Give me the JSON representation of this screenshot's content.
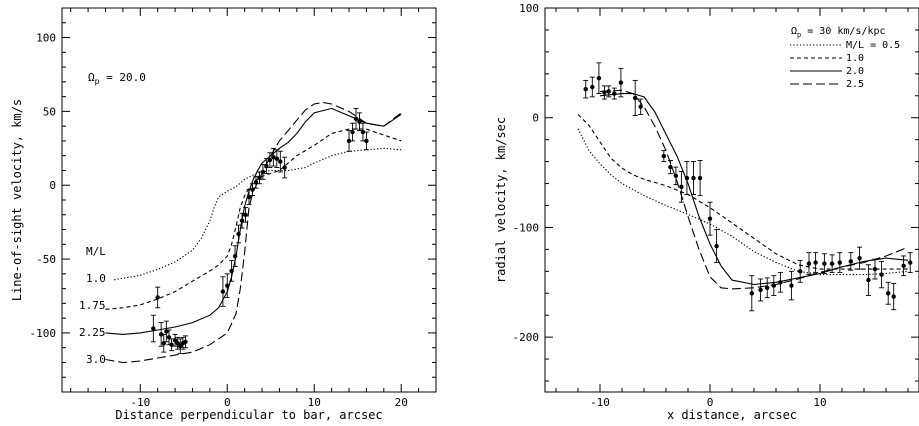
{
  "chart_data": [
    {
      "type": "line",
      "xlabel": "Distance perpendicular to bar, arcsec",
      "ylabel": "Line-of-sight velocity, km/s",
      "xlim": [
        -19,
        24
      ],
      "ylim": [
        -140,
        120
      ],
      "xticks": [
        -10,
        0,
        10,
        20
      ],
      "xtick_labels": [
        "-10",
        "0",
        "10",
        "20"
      ],
      "yticks": [
        -100,
        -50,
        0,
        50,
        100
      ],
      "ytick_labels": [
        "-100",
        "-50",
        "0",
        "50",
        "100"
      ],
      "annotations": {
        "omega_symbol": "Ω",
        "omega_sub": "p",
        "omega_text": " = 20.0",
        "ml_header": "M/L",
        "curve_labels": [
          "1.0",
          "1.75",
          "2.25",
          "3.0"
        ]
      },
      "series": [
        {
          "label_text": "1.0",
          "dash": "1.3,2",
          "x": [
            -13,
            -10,
            -8,
            -6,
            -4,
            -3,
            -2,
            -1.5,
            -1,
            0,
            1,
            2,
            3,
            4,
            5,
            6,
            7,
            8,
            9,
            10,
            12,
            14,
            16,
            18,
            20
          ],
          "y": [
            -64,
            -61,
            -57,
            -52,
            -44,
            -36,
            -24,
            -15,
            -8,
            -4,
            -1,
            4,
            7,
            9,
            10,
            10,
            10,
            11,
            12,
            15,
            20,
            23,
            24,
            25,
            24
          ]
        },
        {
          "label_text": "1.75",
          "dash": "4,3",
          "x": [
            -14,
            -12,
            -10,
            -8,
            -6,
            -4,
            -2,
            -1,
            0,
            0.5,
            1,
            1.5,
            2,
            2.5,
            3,
            4,
            5,
            6,
            7,
            8,
            10,
            12,
            14,
            16,
            18,
            20
          ],
          "y": [
            -84,
            -83,
            -81,
            -77,
            -72,
            -65,
            -58,
            -54,
            -48,
            -40,
            -28,
            -15,
            -7,
            -2,
            2,
            6,
            8,
            10,
            15,
            20,
            27,
            35,
            38,
            38,
            34,
            30
          ]
        },
        {
          "label_text": "2.25",
          "dash": "",
          "x": [
            -14,
            -12,
            -10,
            -8,
            -6,
            -4,
            -2,
            -1,
            0,
            0.5,
            1,
            1.5,
            2,
            2.5,
            3,
            3.5,
            4,
            5,
            6,
            7,
            8,
            9,
            10,
            12,
            14,
            16,
            18,
            20
          ],
          "y": [
            -100,
            -101,
            -100,
            -98,
            -96,
            -93,
            -88,
            -83,
            -72,
            -62,
            -48,
            -30,
            -14,
            -4,
            4,
            10,
            15,
            20,
            25,
            29,
            35,
            43,
            49,
            52,
            47,
            42,
            40,
            48
          ]
        },
        {
          "label_text": "3.0",
          "dash": "9,4",
          "x": [
            -14,
            -12,
            -10,
            -8,
            -6,
            -4,
            -2,
            0,
            1,
            1.5,
            2,
            2.5,
            3,
            3.5,
            4,
            5,
            6,
            7,
            8,
            9,
            10,
            11,
            12,
            14,
            16,
            18,
            20
          ],
          "y": [
            -118,
            -120,
            -119,
            -117,
            -115,
            -113,
            -108,
            -100,
            -87,
            -70,
            -45,
            -15,
            -4,
            2,
            8,
            20,
            30,
            37,
            44,
            51,
            55,
            56,
            55,
            50,
            42,
            40,
            49
          ]
        }
      ],
      "points": [
        {
          "x": -8.5,
          "y": -97,
          "err": 9
        },
        {
          "x": -8.0,
          "y": -76,
          "err": 7
        },
        {
          "x": -7.6,
          "y": -101,
          "err": 8
        },
        {
          "x": -7.3,
          "y": -107,
          "err": 6
        },
        {
          "x": -7.0,
          "y": -99,
          "err": 7
        },
        {
          "x": -6.7,
          "y": -103,
          "err": 5
        },
        {
          "x": -6.4,
          "y": -108,
          "err": 4
        },
        {
          "x": -6.0,
          "y": -105,
          "err": 4
        },
        {
          "x": -5.7,
          "y": -107,
          "err": 4
        },
        {
          "x": -5.4,
          "y": -109,
          "err": 5
        },
        {
          "x": -5.1,
          "y": -107,
          "err": 4
        },
        {
          "x": -4.8,
          "y": -106,
          "err": 4
        },
        {
          "x": -0.5,
          "y": -72,
          "err": 10
        },
        {
          "x": 0.0,
          "y": -68,
          "err": 8
        },
        {
          "x": 0.5,
          "y": -58,
          "err": 7
        },
        {
          "x": 0.9,
          "y": -48,
          "err": 7
        },
        {
          "x": 1.3,
          "y": -33,
          "err": 6
        },
        {
          "x": 1.7,
          "y": -24,
          "err": 5
        },
        {
          "x": 2.1,
          "y": -20,
          "err": 5
        },
        {
          "x": 2.5,
          "y": -8,
          "err": 5
        },
        {
          "x": 2.9,
          "y": -3,
          "err": 4
        },
        {
          "x": 3.3,
          "y": 2,
          "err": 4
        },
        {
          "x": 3.7,
          "y": 5,
          "err": 4
        },
        {
          "x": 4.1,
          "y": 9,
          "err": 5
        },
        {
          "x": 4.5,
          "y": 13,
          "err": 5
        },
        {
          "x": 4.9,
          "y": 17,
          "err": 5
        },
        {
          "x": 5.3,
          "y": 19,
          "err": 6
        },
        {
          "x": 5.7,
          "y": 18,
          "err": 6
        },
        {
          "x": 6.1,
          "y": 16,
          "err": 7
        },
        {
          "x": 6.6,
          "y": 12,
          "err": 7
        },
        {
          "x": 14.0,
          "y": 30,
          "err": 7
        },
        {
          "x": 14.4,
          "y": 36,
          "err": 6
        },
        {
          "x": 14.8,
          "y": 45,
          "err": 7
        },
        {
          "x": 15.2,
          "y": 43,
          "err": 6
        },
        {
          "x": 15.6,
          "y": 36,
          "err": 6
        },
        {
          "x": 16.0,
          "y": 30,
          "err": 6
        }
      ]
    },
    {
      "type": "line",
      "xlabel": "x distance, arcsec",
      "ylabel": "radial velocity, km/sec",
      "xlim": [
        -15,
        19
      ],
      "ylim": [
        -250,
        100
      ],
      "xticks": [
        -10,
        0,
        10
      ],
      "xtick_labels": [
        "-10",
        "0",
        "10"
      ],
      "yticks": [
        -200,
        -100,
        0,
        100
      ],
      "ytick_labels": [
        "-200",
        "-100",
        "0",
        "100"
      ],
      "legend": {
        "title_symbol": "Ω",
        "title_sub": "p",
        "title_text": " = 30 km/s/kpc",
        "entries": [
          "M/L = 0.5",
          "1.0",
          "2.0",
          "2.5"
        ]
      },
      "series": [
        {
          "name": "M/L = 0.5",
          "dash": "1.3,2",
          "x": [
            -12,
            -11,
            -10,
            -9,
            -8,
            -6,
            -4,
            -2,
            0,
            2,
            4,
            6,
            8,
            10,
            12,
            14,
            16,
            18
          ],
          "y": [
            -10,
            -30,
            -42,
            -52,
            -60,
            -71,
            -80,
            -88,
            -97,
            -108,
            -122,
            -132,
            -140,
            -143,
            -143,
            -143,
            -142,
            -140
          ]
        },
        {
          "name": "1.0",
          "dash": "4,3",
          "x": [
            -12,
            -11,
            -10,
            -9,
            -8,
            -7,
            -6,
            -4,
            -2,
            0,
            2,
            4,
            6,
            8,
            10,
            12,
            14,
            16,
            18
          ],
          "y": [
            3,
            -7,
            -22,
            -37,
            -46,
            -52,
            -56,
            -62,
            -70,
            -82,
            -96,
            -110,
            -124,
            -134,
            -138,
            -138,
            -138,
            -138,
            -138
          ]
        },
        {
          "name": "2.0",
          "dash": "",
          "x": [
            -10,
            -8,
            -7,
            -6,
            -5,
            -4,
            -3,
            -2,
            -1,
            0,
            1,
            2,
            4,
            6,
            8,
            10,
            12,
            14,
            16,
            18
          ],
          "y": [
            20,
            22,
            22,
            19,
            5,
            -15,
            -35,
            -60,
            -90,
            -115,
            -135,
            -148,
            -152,
            -150,
            -146,
            -142,
            -136,
            -131,
            -128,
            -130
          ]
        },
        {
          "name": "2.5",
          "dash": "9,4",
          "x": [
            -10,
            -8,
            -7,
            -6,
            -5,
            -4,
            -3,
            -2,
            -1,
            0,
            1,
            2,
            4,
            6,
            8,
            10,
            12,
            14,
            16,
            18
          ],
          "y": [
            24,
            25,
            22,
            10,
            -8,
            -30,
            -58,
            -90,
            -120,
            -145,
            -155,
            -156,
            -155,
            -152,
            -147,
            -141,
            -136,
            -132,
            -126,
            -118
          ]
        }
      ],
      "points": [
        {
          "x": -11.3,
          "y": 26,
          "err": 8
        },
        {
          "x": -10.7,
          "y": 28,
          "err": 9
        },
        {
          "x": -10.1,
          "y": 36,
          "err": 14
        },
        {
          "x": -9.6,
          "y": 23,
          "err": 6
        },
        {
          "x": -9.2,
          "y": 24,
          "err": 5
        },
        {
          "x": -8.7,
          "y": 22,
          "err": 5
        },
        {
          "x": -8.1,
          "y": 32,
          "err": 13
        },
        {
          "x": -6.8,
          "y": 18,
          "err": 16
        },
        {
          "x": -6.3,
          "y": 10,
          "err": 7
        },
        {
          "x": -4.2,
          "y": -35,
          "err": 5
        },
        {
          "x": -3.6,
          "y": -45,
          "err": 6
        },
        {
          "x": -3.1,
          "y": -53,
          "err": 8
        },
        {
          "x": -2.6,
          "y": -63,
          "err": 14
        },
        {
          "x": -2.1,
          "y": -55,
          "err": 15
        },
        {
          "x": -1.5,
          "y": -55,
          "err": 15
        },
        {
          "x": -0.9,
          "y": -55,
          "err": 16
        },
        {
          "x": 0.0,
          "y": -92,
          "err": 15
        },
        {
          "x": 0.6,
          "y": -117,
          "err": 15
        },
        {
          "x": 3.8,
          "y": -160,
          "err": 16
        },
        {
          "x": 4.6,
          "y": -157,
          "err": 10
        },
        {
          "x": 5.2,
          "y": -155,
          "err": 9
        },
        {
          "x": 5.8,
          "y": -153,
          "err": 9
        },
        {
          "x": 6.4,
          "y": -150,
          "err": 9
        },
        {
          "x": 7.4,
          "y": -153,
          "err": 13
        },
        {
          "x": 8.2,
          "y": -140,
          "err": 10
        },
        {
          "x": 9.0,
          "y": -133,
          "err": 10
        },
        {
          "x": 9.6,
          "y": -132,
          "err": 9
        },
        {
          "x": 10.4,
          "y": -133,
          "err": 9
        },
        {
          "x": 11.1,
          "y": -133,
          "err": 8
        },
        {
          "x": 11.8,
          "y": -132,
          "err": 9
        },
        {
          "x": 12.8,
          "y": -131,
          "err": 8
        },
        {
          "x": 13.6,
          "y": -128,
          "err": 10
        },
        {
          "x": 14.4,
          "y": -148,
          "err": 14
        },
        {
          "x": 15.0,
          "y": -138,
          "err": 9
        },
        {
          "x": 15.6,
          "y": -143,
          "err": 12
        },
        {
          "x": 16.2,
          "y": -160,
          "err": 10
        },
        {
          "x": 16.7,
          "y": -163,
          "err": 12
        },
        {
          "x": 17.6,
          "y": -135,
          "err": 9
        },
        {
          "x": 18.2,
          "y": -132,
          "err": 9
        }
      ]
    }
  ]
}
